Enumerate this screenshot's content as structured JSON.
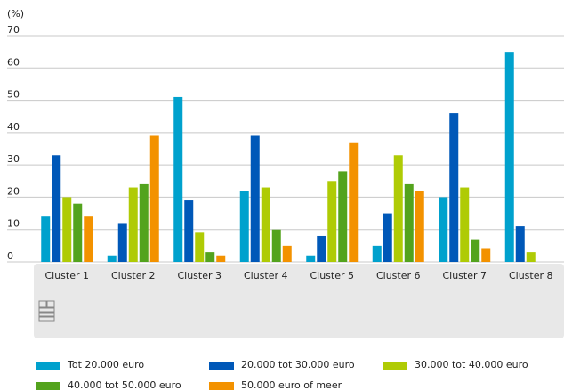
{
  "chart_data": {
    "type": "bar",
    "y_label": "(%)",
    "categories": [
      "Cluster 1",
      "Cluster 2",
      "Cluster 3",
      "Cluster 4",
      "Cluster 5",
      "Cluster 6",
      "Cluster 7",
      "Cluster 8"
    ],
    "series": [
      {
        "name": "Tot 20.000 euro",
        "color": "#00a1cd",
        "values": [
          14,
          2,
          51,
          22,
          2,
          5,
          20,
          65
        ]
      },
      {
        "name": "20.000 tot 30.000 euro",
        "color": "#0058b8",
        "values": [
          33,
          12,
          19,
          39,
          8,
          15,
          46,
          11
        ]
      },
      {
        "name": "30.000 tot 40.000 euro",
        "color": "#afcb05",
        "values": [
          20,
          23,
          9,
          23,
          25,
          33,
          23,
          3
        ]
      },
      {
        "name": "40.000 tot 50.000 euro",
        "color": "#53a31d",
        "values": [
          18,
          24,
          3,
          10,
          28,
          24,
          7,
          0
        ]
      },
      {
        "name": "50.000 euro of meer",
        "color": "#f39200",
        "values": [
          14,
          39,
          2,
          5,
          37,
          22,
          4,
          0
        ]
      }
    ],
    "ylim": [
      0,
      70
    ],
    "yticks": [
      0,
      10,
      20,
      30,
      40,
      50,
      60,
      70
    ],
    "grid": true
  }
}
